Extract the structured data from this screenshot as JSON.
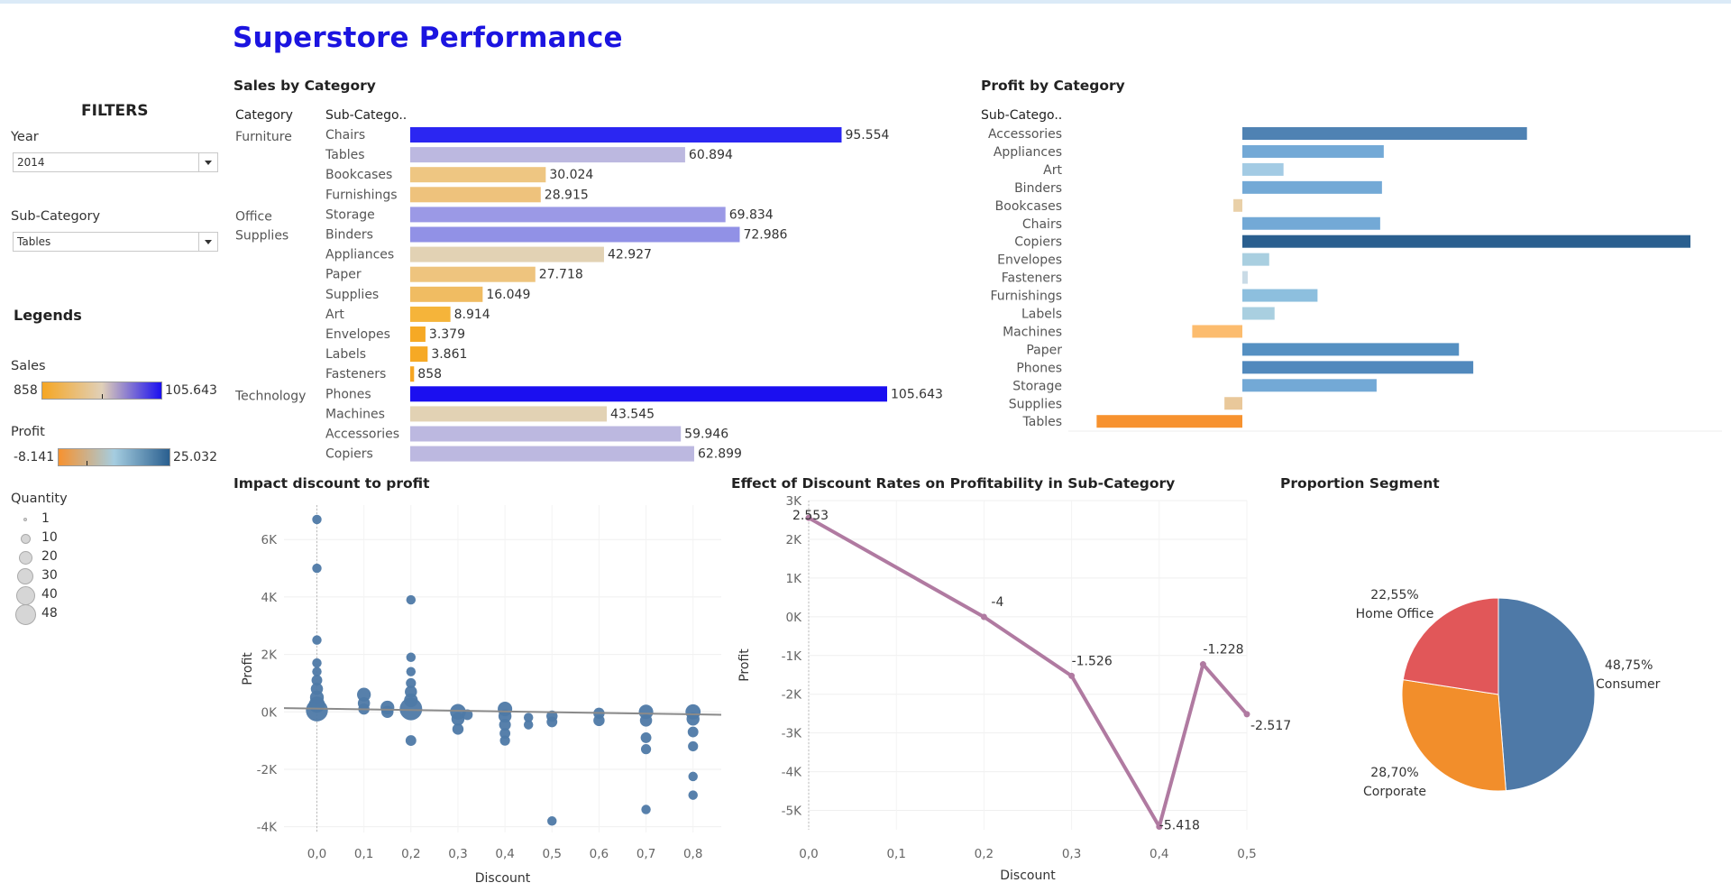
{
  "dashboard_title": "Superstore Performance",
  "filters": {
    "heading": "FILTERS",
    "year_label": "Year",
    "year_value": "2014",
    "subcat_label": "Sub-Category",
    "subcat_value": "Tables"
  },
  "legends": {
    "heading": "Legends",
    "sales": {
      "label": "Sales",
      "min": "858",
      "max": "105.643",
      "colors": [
        "#f6a623",
        "#e0d0b8",
        "#1b10f0"
      ]
    },
    "profit": {
      "label": "Profit",
      "min": "-8.141",
      "max": "25.032",
      "colors": [
        "#f7922f",
        "#a5cde0",
        "#2a5f8f"
      ]
    },
    "quantity": {
      "label": "Quantity",
      "items": [
        "1",
        "10",
        "20",
        "30",
        "40",
        "48"
      ]
    }
  },
  "sales_by_category": {
    "title": "Sales by Category",
    "col_category": "Category",
    "col_subcategory": "Sub-Catego..",
    "groups": [
      {
        "category": "Furniture",
        "label_lines": [
          "Furniture"
        ],
        "rows": [
          {
            "name": "Chairs",
            "value": 95554,
            "label": "95.554",
            "color": "#2b26f2"
          },
          {
            "name": "Tables",
            "value": 60894,
            "label": "60.894",
            "color": "#bcb8e0"
          },
          {
            "name": "Bookcases",
            "value": 30024,
            "label": "30.024",
            "color": "#eec682"
          },
          {
            "name": "Furnishings",
            "value": 28915,
            "label": "28.915",
            "color": "#eec27c"
          }
        ]
      },
      {
        "category": "Office Supplies",
        "label_lines": [
          "Office",
          "Supplies"
        ],
        "rows": [
          {
            "name": "Storage",
            "value": 69834,
            "label": "69.834",
            "color": "#9b99e6"
          },
          {
            "name": "Binders",
            "value": 72986,
            "label": "72.986",
            "color": "#9191e6"
          },
          {
            "name": "Appliances",
            "value": 42927,
            "label": "42.927",
            "color": "#e2d2b4"
          },
          {
            "name": "Paper",
            "value": 27718,
            "label": "27.718",
            "color": "#eec47e"
          },
          {
            "name": "Supplies",
            "value": 16049,
            "label": "16.049",
            "color": "#f0bc62"
          },
          {
            "name": "Art",
            "value": 8914,
            "label": "8.914",
            "color": "#f5b43a"
          },
          {
            "name": "Envelopes",
            "value": 3379,
            "label": "3.379",
            "color": "#f6a925"
          },
          {
            "name": "Labels",
            "value": 3861,
            "label": "3.861",
            "color": "#f6a925"
          },
          {
            "name": "Fasteners",
            "value": 858,
            "label": "858",
            "color": "#f6a623"
          }
        ]
      },
      {
        "category": "Technology",
        "label_lines": [
          "Technology"
        ],
        "rows": [
          {
            "name": "Phones",
            "value": 105643,
            "label": "105.643",
            "color": "#1b0ff0"
          },
          {
            "name": "Machines",
            "value": 43545,
            "label": "43.545",
            "color": "#e2d2b4"
          },
          {
            "name": "Accessories",
            "value": 59946,
            "label": "59.946",
            "color": "#bcb8e0"
          },
          {
            "name": "Copiers",
            "value": 62899,
            "label": "62.899",
            "color": "#bcb8e0"
          }
        ]
      }
    ]
  },
  "profit_by_category": {
    "title": "Profit by Category",
    "col_subcategory": "Sub-Catego..",
    "rows": [
      {
        "name": "Accessories",
        "value": 15.9,
        "color": "#4f82b3"
      },
      {
        "name": "Appliances",
        "value": 7.9,
        "color": "#73a9d6"
      },
      {
        "name": "Art",
        "value": 2.3,
        "color": "#a3cbe4"
      },
      {
        "name": "Binders",
        "value": 7.8,
        "color": "#73a9d6"
      },
      {
        "name": "Bookcases",
        "value": -0.5,
        "color": "#e9d0a8"
      },
      {
        "name": "Chairs",
        "value": 7.7,
        "color": "#73a9d6"
      },
      {
        "name": "Copiers",
        "value": 25.032,
        "color": "#2a5f8f"
      },
      {
        "name": "Envelopes",
        "value": 1.5,
        "color": "#a9cfe0"
      },
      {
        "name": "Fasteners",
        "value": 0.3,
        "color": "#c9dbe6"
      },
      {
        "name": "Furnishings",
        "value": 4.2,
        "color": "#8dbfde"
      },
      {
        "name": "Labels",
        "value": 1.8,
        "color": "#a9cfe0"
      },
      {
        "name": "Machines",
        "value": -2.8,
        "color": "#fcbc6e"
      },
      {
        "name": "Paper",
        "value": 12.1,
        "color": "#5590c2"
      },
      {
        "name": "Phones",
        "value": 12.9,
        "color": "#5189bd"
      },
      {
        "name": "Storage",
        "value": 7.5,
        "color": "#73a9d6"
      },
      {
        "name": "Supplies",
        "value": -1.0,
        "color": "#e9c89a"
      },
      {
        "name": "Tables",
        "value": -8.141,
        "color": "#f7922f"
      }
    ]
  },
  "chart_data": [
    {
      "type": "scatter",
      "title": "Impact discount to profit",
      "xlabel": "Discount",
      "ylabel": "Profit",
      "xlim": [
        -0.07,
        0.86
      ],
      "ylim": [
        -4200,
        7200
      ],
      "x_ticks": [
        "0,0",
        "0,1",
        "0,2",
        "0,3",
        "0,4",
        "0,5",
        "0,6",
        "0,7",
        "0,8"
      ],
      "y_ticks": [
        "6K",
        "4K",
        "2K",
        "0K",
        "-2K",
        "-4K"
      ],
      "color": "#4e79a7",
      "trend_line": {
        "x": [
          -0.07,
          0.86
        ],
        "y": [
          130,
          -100
        ]
      },
      "points": [
        {
          "x": 0.0,
          "y": 6700,
          "q": 3
        },
        {
          "x": 0.0,
          "y": 5000,
          "q": 3
        },
        {
          "x": 0.0,
          "y": 2500,
          "q": 3
        },
        {
          "x": 0.0,
          "y": 1700,
          "q": 3
        },
        {
          "x": 0.0,
          "y": 1400,
          "q": 3
        },
        {
          "x": 0.0,
          "y": 1100,
          "q": 5
        },
        {
          "x": 0.0,
          "y": 800,
          "q": 8
        },
        {
          "x": 0.0,
          "y": 500,
          "q": 12
        },
        {
          "x": 0.0,
          "y": 250,
          "q": 20
        },
        {
          "x": 0.0,
          "y": 50,
          "q": 45
        },
        {
          "x": 0.1,
          "y": 600,
          "q": 12
        },
        {
          "x": 0.1,
          "y": 300,
          "q": 8
        },
        {
          "x": 0.1,
          "y": 100,
          "q": 6
        },
        {
          "x": 0.15,
          "y": 150,
          "q": 12
        },
        {
          "x": 0.15,
          "y": 0,
          "q": 8
        },
        {
          "x": 0.2,
          "y": 3900,
          "q": 3
        },
        {
          "x": 0.2,
          "y": 1900,
          "q": 3
        },
        {
          "x": 0.2,
          "y": 1400,
          "q": 3
        },
        {
          "x": 0.2,
          "y": 1000,
          "q": 4
        },
        {
          "x": 0.2,
          "y": 700,
          "q": 8
        },
        {
          "x": 0.2,
          "y": 400,
          "q": 12
        },
        {
          "x": 0.2,
          "y": 100,
          "q": 48
        },
        {
          "x": 0.2,
          "y": -1000,
          "q": 5
        },
        {
          "x": 0.3,
          "y": 0,
          "q": 18
        },
        {
          "x": 0.3,
          "y": -250,
          "q": 10
        },
        {
          "x": 0.3,
          "y": -600,
          "q": 6
        },
        {
          "x": 0.32,
          "y": -100,
          "q": 5
        },
        {
          "x": 0.4,
          "y": 100,
          "q": 14
        },
        {
          "x": 0.4,
          "y": -150,
          "q": 10
        },
        {
          "x": 0.4,
          "y": -450,
          "q": 7
        },
        {
          "x": 0.4,
          "y": -750,
          "q": 5
        },
        {
          "x": 0.4,
          "y": -1000,
          "q": 4
        },
        {
          "x": 0.45,
          "y": -200,
          "q": 3
        },
        {
          "x": 0.45,
          "y": -450,
          "q": 3
        },
        {
          "x": 0.5,
          "y": -150,
          "q": 6
        },
        {
          "x": 0.5,
          "y": -350,
          "q": 5
        },
        {
          "x": 0.5,
          "y": -3800,
          "q": 3
        },
        {
          "x": 0.6,
          "y": -50,
          "q": 6
        },
        {
          "x": 0.6,
          "y": -300,
          "q": 6
        },
        {
          "x": 0.7,
          "y": 0,
          "q": 14
        },
        {
          "x": 0.7,
          "y": -300,
          "q": 8
        },
        {
          "x": 0.7,
          "y": -900,
          "q": 5
        },
        {
          "x": 0.7,
          "y": -1300,
          "q": 4
        },
        {
          "x": 0.7,
          "y": -3400,
          "q": 3
        },
        {
          "x": 0.8,
          "y": 0,
          "q": 16
        },
        {
          "x": 0.8,
          "y": -250,
          "q": 10
        },
        {
          "x": 0.8,
          "y": -700,
          "q": 5
        },
        {
          "x": 0.8,
          "y": -1200,
          "q": 4
        },
        {
          "x": 0.8,
          "y": -2250,
          "q": 3
        },
        {
          "x": 0.8,
          "y": -2900,
          "q": 3
        }
      ]
    },
    {
      "type": "line",
      "title": "Effect of Discount Rates on Profitability in Sub-Category",
      "xlabel": "Discount",
      "ylabel": "Profit",
      "xlim": [
        0,
        0.5
      ],
      "ylim": [
        -5500,
        3000
      ],
      "x_ticks": [
        "0,0",
        "0,1",
        "0,2",
        "0,3",
        "0,4",
        "0,5"
      ],
      "y_ticks": [
        "3K",
        "2K",
        "1K",
        "0K",
        "-1K",
        "-2K",
        "-3K",
        "-4K",
        "-5K"
      ],
      "color": "#b07aa1",
      "x": [
        0.0,
        0.2,
        0.3,
        0.4,
        0.45,
        0.5
      ],
      "y": [
        2553,
        -4,
        -1526,
        -5418,
        -1228,
        -2517
      ],
      "data_labels": [
        "2.553",
        "-4",
        "-1.526",
        "-5.418",
        "-1.228",
        "-2.517"
      ]
    },
    {
      "type": "pie",
      "title": "Proportion Segment",
      "slices": [
        {
          "name": "Consumer",
          "value": 48.75,
          "label": "48,75%",
          "color": "#4e79a7"
        },
        {
          "name": "Corporate",
          "value": 28.7,
          "label": "28,70%",
          "color": "#f28e2b"
        },
        {
          "name": "Home Office",
          "value": 22.55,
          "label": "22,55%",
          "color": "#e15759"
        }
      ]
    }
  ]
}
